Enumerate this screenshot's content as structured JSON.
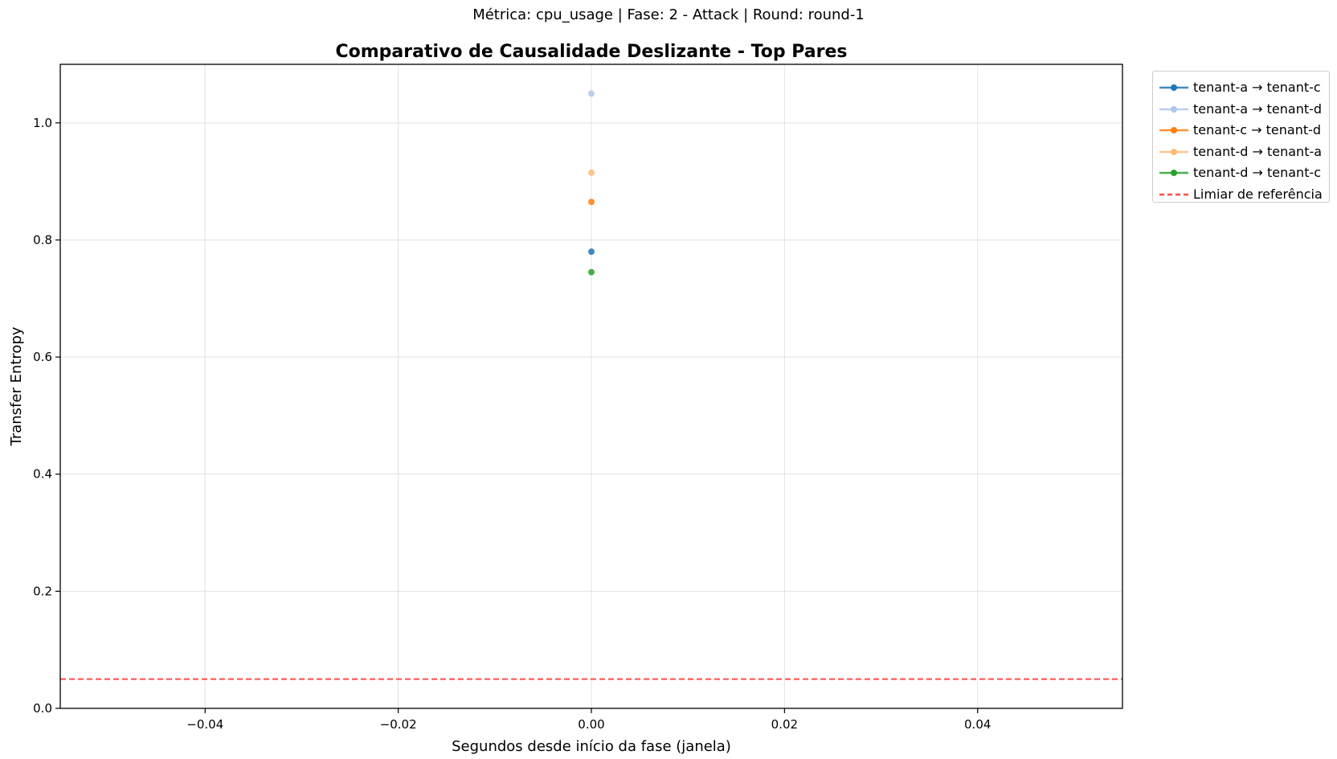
{
  "suptitle": "Métrica: cpu_usage | Fase: 2 - Attack | Round: round-1",
  "chart_data": {
    "type": "line",
    "title": "Comparativo de Causalidade Deslizante - Top Pares",
    "xlabel": "Segundos desde início da fase (janela)",
    "ylabel": "Transfer Entropy",
    "xlim": [
      -0.055,
      0.055
    ],
    "ylim": [
      0.0,
      1.1
    ],
    "xticks": [
      -0.04,
      -0.02,
      0.0,
      0.02,
      0.04
    ],
    "xtick_labels": [
      "−0.04",
      "−0.02",
      "0.00",
      "0.02",
      "0.04"
    ],
    "yticks": [
      0.0,
      0.2,
      0.4,
      0.6,
      0.8,
      1.0
    ],
    "ytick_labels": [
      "0.0",
      "0.2",
      "0.4",
      "0.6",
      "0.8",
      "1.0"
    ],
    "grid": true,
    "legend_position": "outside-top-right",
    "series": [
      {
        "name": "tenant-a → tenant-c",
        "color": "#1f77b4",
        "x": [
          0.0
        ],
        "y": [
          0.78
        ]
      },
      {
        "name": "tenant-a → tenant-d",
        "color": "#aec7e8",
        "x": [
          0.0
        ],
        "y": [
          1.05
        ]
      },
      {
        "name": "tenant-c → tenant-d",
        "color": "#ff7f0e",
        "x": [
          0.0
        ],
        "y": [
          0.865
        ]
      },
      {
        "name": "tenant-d → tenant-a",
        "color": "#ffbb78",
        "x": [
          0.0
        ],
        "y": [
          0.915
        ]
      },
      {
        "name": "tenant-d → tenant-c",
        "color": "#2ca02c",
        "x": [
          0.0
        ],
        "y": [
          0.745
        ]
      }
    ],
    "threshold": {
      "name": "Limiar de referência",
      "value": 0.05,
      "color": "#ff0000",
      "style": "dashed"
    }
  }
}
